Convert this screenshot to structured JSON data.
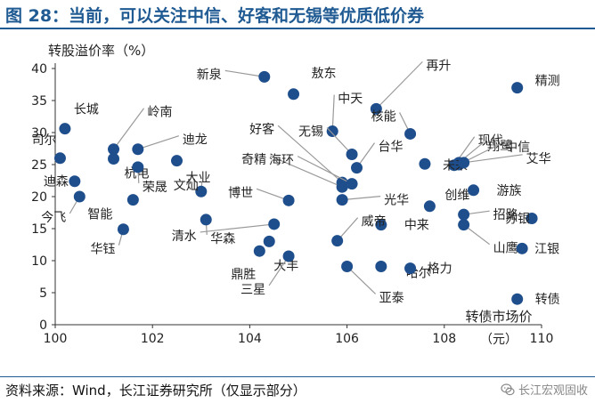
{
  "header": {
    "title": "图 28：当前，可以关注中信、好客和无锡等优质低价券"
  },
  "footer": {
    "source": "资料来源：Wind，长江证券研究所（仅显示部分）",
    "watermark": "长江宏观固收",
    "watermark_icon": "wechat-icon"
  },
  "colors": {
    "title": "#1f5a93",
    "marker": "#1f4e8c",
    "axis": "#333333",
    "leader": "#999999"
  },
  "chart_data": {
    "type": "scatter",
    "xlabel": "转债市场价（元）",
    "ylabel": "转股溢价率（%）",
    "xlim": [
      100,
      110
    ],
    "ylim": [
      0,
      40
    ],
    "xticks": [
      "100",
      "102",
      "104",
      "106",
      "108",
      "110"
    ],
    "yticks": [
      "0",
      "5",
      "10",
      "15",
      "20",
      "25",
      "30",
      "35",
      "40"
    ],
    "grid": false,
    "points": [
      {
        "name": "新泉",
        "x": 104.3,
        "y": 38.7
      },
      {
        "name": "敖东",
        "x": 104.9,
        "y": 36.0
      },
      {
        "name": "再升",
        "x": 106.6,
        "y": 33.7
      },
      {
        "name": "精测",
        "x": 109.5,
        "y": 37.0
      },
      {
        "name": "长城",
        "x": 100.2,
        "y": 30.6
      },
      {
        "name": "岭南",
        "x": 101.2,
        "y": 27.4
      },
      {
        "name": "中天",
        "x": 105.7,
        "y": 30.2
      },
      {
        "name": "核能",
        "x": 107.3,
        "y": 29.8
      },
      {
        "name": "现代",
        "x": 108.2,
        "y": 24.9
      },
      {
        "name": "翔鹭",
        "x": 108.3,
        "y": 25.3
      },
      {
        "name": "司尔",
        "x": 100.1,
        "y": 26.0
      },
      {
        "name": "迪龙",
        "x": 101.7,
        "y": 27.4
      },
      {
        "name": "好客",
        "x": 105.9,
        "y": 22.2
      },
      {
        "name": "无锡",
        "x": 106.1,
        "y": 26.6
      },
      {
        "name": "台华",
        "x": 106.2,
        "y": 24.5
      },
      {
        "name": "中信",
        "x": 108.3,
        "y": 25.0
      },
      {
        "name": "奇精",
        "x": 105.9,
        "y": 21.5
      },
      {
        "name": "未来",
        "x": 107.6,
        "y": 25.1
      },
      {
        "name": "艾华",
        "x": 108.4,
        "y": 25.3
      },
      {
        "name": "大业",
        "x": 102.5,
        "y": 25.6
      },
      {
        "name": "杭电",
        "x": 101.2,
        "y": 25.9
      },
      {
        "name": "海环",
        "x": 106.1,
        "y": 22.0
      },
      {
        "name": "迪森",
        "x": 100.4,
        "y": 22.4
      },
      {
        "name": "荣晟",
        "x": 101.7,
        "y": 24.6
      },
      {
        "name": "文灿",
        "x": 103.0,
        "y": 20.8
      },
      {
        "name": "博世",
        "x": 104.8,
        "y": 19.4
      },
      {
        "name": "光华",
        "x": 105.9,
        "y": 19.5
      },
      {
        "name": "创维",
        "x": 107.7,
        "y": 18.5
      },
      {
        "name": "游族",
        "x": 108.6,
        "y": 21.0
      },
      {
        "name": "今飞",
        "x": 100.5,
        "y": 20.0
      },
      {
        "name": "智能",
        "x": 101.6,
        "y": 19.5
      },
      {
        "name": "华森",
        "x": 103.1,
        "y": 16.4
      },
      {
        "name": "中来",
        "x": 106.7,
        "y": 15.6
      },
      {
        "name": "招路",
        "x": 108.4,
        "y": 17.2
      },
      {
        "name": "苏银",
        "x": 109.8,
        "y": 16.6
      },
      {
        "name": "华钰",
        "x": 101.4,
        "y": 14.9
      },
      {
        "name": "清水",
        "x": 104.5,
        "y": 15.7
      },
      {
        "name": "威帝",
        "x": 105.8,
        "y": 13.1
      },
      {
        "name": "山鹰",
        "x": 108.4,
        "y": 15.6
      },
      {
        "name": "江银",
        "x": 109.6,
        "y": 11.9
      },
      {
        "name": "鼎胜",
        "x": 104.2,
        "y": 11.5
      },
      {
        "name": "大丰",
        "x": 104.4,
        "y": 13.0
      },
      {
        "name": "三星",
        "x": 104.8,
        "y": 10.7
      },
      {
        "name": "亚泰",
        "x": 106.0,
        "y": 9.1
      },
      {
        "name": "哈尔",
        "x": 106.7,
        "y": 9.1
      },
      {
        "name": "格力",
        "x": 107.3,
        "y": 8.8
      },
      {
        "name": "转债",
        "x": 109.5,
        "y": 4.0
      }
    ]
  }
}
